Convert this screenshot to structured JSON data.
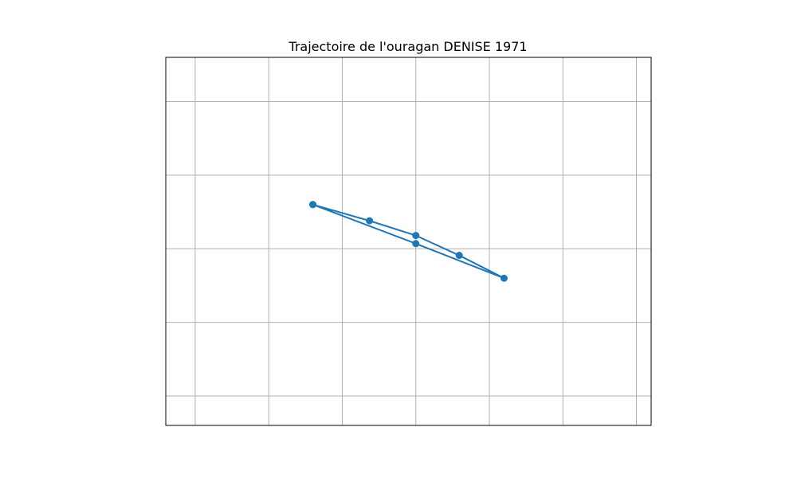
{
  "chart_data": {
    "type": "line",
    "title": "Trajectoire de l'ouragan DENISE 1971",
    "xlabel": "",
    "ylabel": "",
    "grid": true,
    "axes_ticks_visible": false,
    "color": "#1f77b4",
    "marker": "circle",
    "xlim": [
      -0.2,
      6.4
    ],
    "ylim": [
      -2.4,
      2.6
    ],
    "gridlines_x": [
      0.2,
      1.2,
      2.2,
      3.2,
      4.2,
      5.2,
      6.2
    ],
    "gridlines_y": [
      -2.0,
      -1.0,
      0.0,
      1.0,
      2.0
    ],
    "track": {
      "x": [
        1.8,
        2.57,
        3.2,
        3.79,
        4.4,
        3.2,
        1.8
      ],
      "y": [
        0.6,
        0.38,
        0.18,
        -0.09,
        -0.4,
        0.07,
        0.6
      ]
    }
  }
}
